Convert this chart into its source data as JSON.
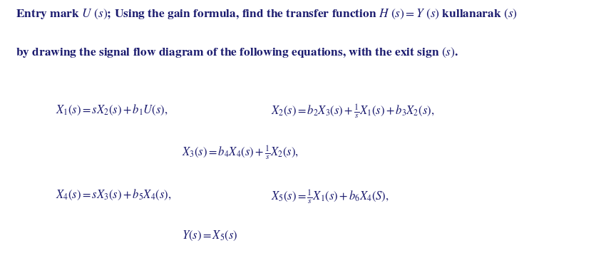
{
  "title_line1": "Entry mark $U$ $(s)$; Using the gain formula, find the transfer function $H$ $(s) = Y$ $(s)$ kullanarak $(s)$",
  "title_line2": "by drawing the signal flow diagram of the following equations, with the exit sign $(s)$.",
  "eq1a": "$X_1(s) = sX_2(s) + b_1U(s),$",
  "eq1b": "$X_2(s) = b_2X_3(s) + \\frac{1}{s}X_1(s) + b_3X_2(s),$",
  "eq2": "$X_3(s) = b_4X_4(s) + \\frac{1}{s}X_2(s),$",
  "eq3a": "$X_4(s) = sX_3(s) + b_5X_4(s),$",
  "eq3b": "$X_5(s) = \\frac{1}{s}X_1(s) + b_6X_4(S),$",
  "eq4": "$Y(s) = X_5(s)$",
  "bg_color": "#ffffff",
  "text_color": "#1a1a6e",
  "title_fontsize": 12.5,
  "eq_fontsize": 12.0,
  "figsize": [
    8.64,
    3.62
  ],
  "dpi": 100
}
